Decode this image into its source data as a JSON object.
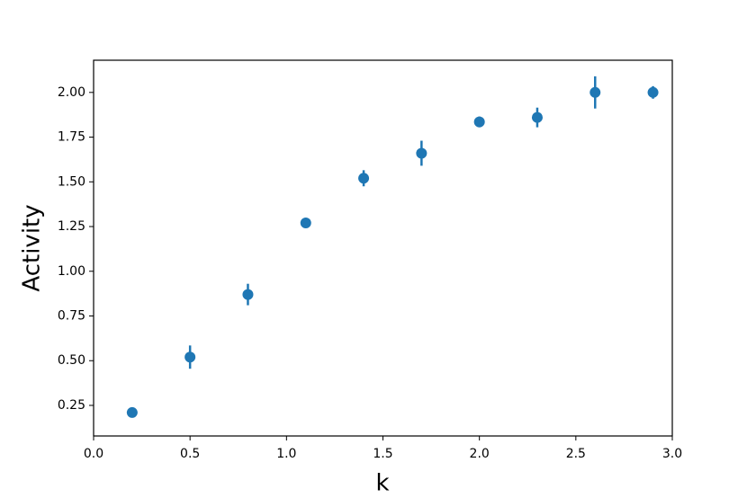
{
  "chart_data": {
    "type": "errorbar-scatter",
    "xlabel": "k",
    "ylabel": "Activity",
    "x": [
      0.2,
      0.5,
      0.8,
      1.1,
      1.4,
      1.7,
      2.0,
      2.3,
      2.6,
      2.9
    ],
    "values": [
      0.21,
      0.52,
      0.87,
      1.27,
      1.52,
      1.66,
      1.835,
      1.86,
      2.0,
      2.0
    ],
    "errors": [
      0.01,
      0.065,
      0.06,
      0.01,
      0.045,
      0.07,
      0.03,
      0.055,
      0.09,
      0.035
    ],
    "color": "#1f77b4",
    "xlim": [
      0,
      3.0
    ],
    "xticks": [
      {
        "value": 0,
        "label": "0.0"
      },
      0.5,
      {
        "value": 1,
        "label": "1.0"
      },
      1.5,
      {
        "value": 2,
        "label": "2.0"
      },
      2.5,
      {
        "value": 3,
        "label": "3.0"
      }
    ],
    "ylim": [
      0.079,
      2.18
    ],
    "yticks": [
      0.25,
      {
        "value": 0.5,
        "label": "0.50"
      },
      0.75,
      {
        "value": 1,
        "label": "1.00"
      },
      1.25,
      {
        "value": 1.5,
        "label": "1.50"
      },
      1.75,
      {
        "value": 2,
        "label": "2.00"
      }
    ],
    "grid": false
  }
}
